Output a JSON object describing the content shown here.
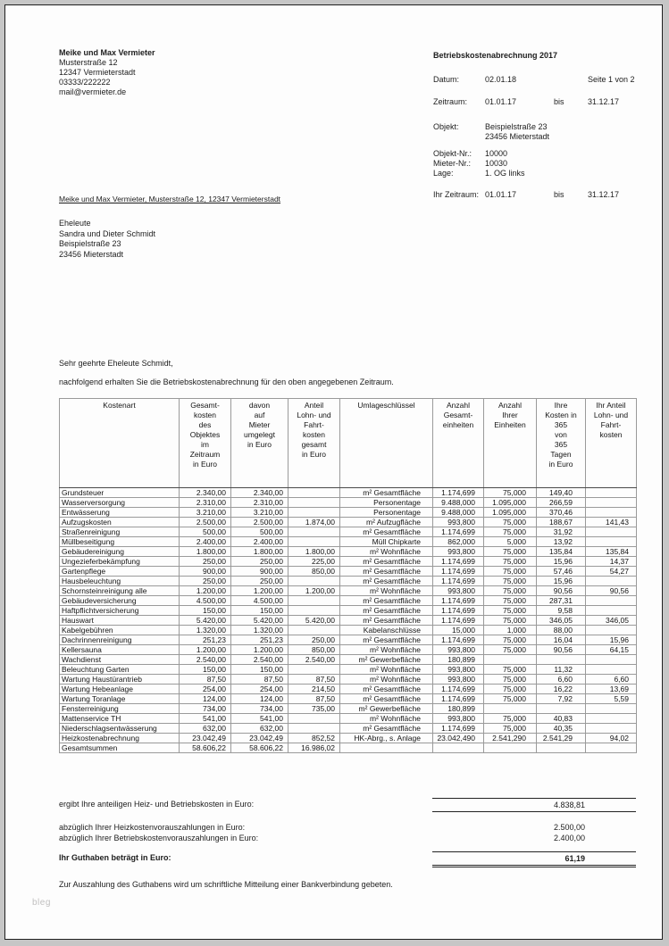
{
  "sender": {
    "name": "Meike und Max Vermieter",
    "address": "Musterstraße 12\n12347 Vermieterstadt\n03333/222222\nmail@vermieter.de"
  },
  "doc_header": {
    "title": "Betriebskostenabrechnung 2017",
    "datum": {
      "label": "Datum:",
      "value": "02.01.18",
      "page": "Seite 1 von 2"
    },
    "zeitraum": {
      "label": "Zeitraum:",
      "from": "01.01.17",
      "bis": "bis",
      "to": "31.12.17"
    },
    "objekt": {
      "label": "Objekt:",
      "value": "Beispielstraße 23\n23456 Mieterstadt"
    },
    "objekt_nr": {
      "label": "Objekt-Nr.:",
      "value": "10000"
    },
    "mieter_nr": {
      "label": "Mieter-Nr.:",
      "value": "10030"
    },
    "lage": {
      "label": "Lage:",
      "value": "1. OG links"
    },
    "ihr_zeitraum": {
      "label": "Ihr Zeitraum:",
      "from": "01.01.17",
      "bis": "bis",
      "to": "31.12.17"
    }
  },
  "sender_line": "Meike und Max Vermieter, Musterstraße 12, 12347 Vermieterstadt",
  "recipient": "Eheleute\nSandra und Dieter Schmidt\nBeispielstraße 23\n23456 Mieterstadt",
  "salutation": "Sehr geehrte Eheleute Schmidt,",
  "intro": "nachfolgend erhalten Sie die Betriebskostenabrechnung für den oben angegebenen Zeitraum.",
  "table": {
    "headers": [
      "Kostenart",
      "Gesamt-\nkosten\ndes\nObjektes\nim\nZeitraum\nin Euro",
      "davon\nauf\nMieter\numgelegt\nin Euro",
      "Anteil\nLohn- und\nFahrt-\nkosten\ngesamt\nin Euro",
      "Umlageschlüssel",
      "Anzahl\nGesamt-\neinheiten",
      "Anzahl\nIhrer\nEinheiten",
      "Ihre\nKosten in\n365\nvon\n365\nTagen\nin Euro",
      "Ihr Anteil\nLohn- und\nFahrt-\nkosten"
    ],
    "rows": [
      [
        "Grundsteuer",
        "2.340,00",
        "2.340,00",
        "",
        "m² Gesamtfläche",
        "1.174,699",
        "75,000",
        "149,40",
        ""
      ],
      [
        "Wasserversorgung",
        "2.310,00",
        "2.310,00",
        "",
        "Personentage",
        "9.488,000",
        "1.095,000",
        "266,59",
        ""
      ],
      [
        "Entwässerung",
        "3.210,00",
        "3.210,00",
        "",
        "Personentage",
        "9.488,000",
        "1.095,000",
        "370,46",
        ""
      ],
      [
        "Aufzugskosten",
        "2.500,00",
        "2.500,00",
        "1.874,00",
        "m² Aufzugfläche",
        "993,800",
        "75,000",
        "188,67",
        "141,43"
      ],
      [
        "Straßenreinigung",
        "500,00",
        "500,00",
        "",
        "m² Gesamtfläche",
        "1.174,699",
        "75,000",
        "31,92",
        ""
      ],
      [
        "Müllbeseitigung",
        "2.400,00",
        "2.400,00",
        "",
        "Müll Chipkarte",
        "862,000",
        "5,000",
        "13,92",
        ""
      ],
      [
        "Gebäudereinigung",
        "1.800,00",
        "1.800,00",
        "1.800,00",
        "m² Wohnfläche",
        "993,800",
        "75,000",
        "135,84",
        "135,84"
      ],
      [
        "Ungezieferbekämpfung",
        "250,00",
        "250,00",
        "225,00",
        "m² Gesamtfläche",
        "1.174,699",
        "75,000",
        "15,96",
        "14,37"
      ],
      [
        "Gartenpflege",
        "900,00",
        "900,00",
        "850,00",
        "m² Gesamtfläche",
        "1.174,699",
        "75,000",
        "57,46",
        "54,27"
      ],
      [
        "Hausbeleuchtung",
        "250,00",
        "250,00",
        "",
        "m² Gesamtfläche",
        "1.174,699",
        "75,000",
        "15,96",
        ""
      ],
      [
        "Schornsteinreinigung alle",
        "1.200,00",
        "1.200,00",
        "1.200,00",
        "m² Wohnfläche",
        "993,800",
        "75,000",
        "90,56",
        "90,56"
      ],
      [
        "Gebäudeversicherung",
        "4.500,00",
        "4.500,00",
        "",
        "m² Gesamtfläche",
        "1.174,699",
        "75,000",
        "287,31",
        ""
      ],
      [
        "Haftpflichtversicherung",
        "150,00",
        "150,00",
        "",
        "m² Gesamtfläche",
        "1.174,699",
        "75,000",
        "9,58",
        ""
      ],
      [
        "Hauswart",
        "5.420,00",
        "5.420,00",
        "5.420,00",
        "m² Gesamtfläche",
        "1.174,699",
        "75,000",
        "346,05",
        "346,05"
      ],
      [
        "Kabelgebühren",
        "1.320,00",
        "1.320,00",
        "",
        "Kabelanschlüsse",
        "15,000",
        "1,000",
        "88,00",
        ""
      ],
      [
        "Dachrinnenreinigung",
        "251,23",
        "251,23",
        "250,00",
        "m² Gesamtfläche",
        "1.174,699",
        "75,000",
        "16,04",
        "15,96"
      ],
      [
        "Kellersauna",
        "1.200,00",
        "1.200,00",
        "850,00",
        "m² Wohnfläche",
        "993,800",
        "75,000",
        "90,56",
        "64,15"
      ],
      [
        "Wachdienst",
        "2.540,00",
        "2.540,00",
        "2.540,00",
        "m² Gewerbefläche",
        "180,899",
        "",
        "",
        ""
      ],
      [
        "Beleuchtung Garten",
        "150,00",
        "150,00",
        "",
        "m² Wohnfläche",
        "993,800",
        "75,000",
        "11,32",
        ""
      ],
      [
        "Wartung Haustürantrieb",
        "87,50",
        "87,50",
        "87,50",
        "m² Wohnfläche",
        "993,800",
        "75,000",
        "6,60",
        "6,60"
      ],
      [
        "Wartung Hebeanlage",
        "254,00",
        "254,00",
        "214,50",
        "m² Gesamtfläche",
        "1.174,699",
        "75,000",
        "16,22",
        "13,69"
      ],
      [
        "Wartung Toranlage",
        "124,00",
        "124,00",
        "87,50",
        "m² Gesamtfläche",
        "1.174,699",
        "75,000",
        "7,92",
        "5,59"
      ],
      [
        "Fensterreinigung",
        "734,00",
        "734,00",
        "735,00",
        "m² Gewerbefläche",
        "180,899",
        "",
        "",
        ""
      ],
      [
        "Mattenservice TH",
        "541,00",
        "541,00",
        "",
        "m² Wohnfläche",
        "993,800",
        "75,000",
        "40,83",
        ""
      ],
      [
        "Niederschlagsentwässerung",
        "632,00",
        "632,00",
        "",
        "m² Gesamtfläche",
        "1.174,699",
        "75,000",
        "40,35",
        ""
      ],
      [
        "Heizkostenabrechnung",
        "23.042,49",
        "23.042,49",
        "852,52",
        "HK-Abrg., s. Anlage",
        "23.042,490",
        "2.541,290",
        "2.541,29",
        "94,02"
      ],
      [
        "Gesamtsummen",
        "58.606,22",
        "58.606,22",
        "16.986,02",
        "",
        "",
        "",
        "",
        ""
      ]
    ]
  },
  "summary": {
    "result": {
      "label": "ergibt Ihre anteiligen Heiz- und Betriebskosten in Euro:",
      "value": "4.838,81"
    },
    "deduction1": {
      "label": "abzüglich Ihrer Heizkostenvorauszahlungen in Euro:",
      "value": "2.500,00"
    },
    "deduction2": {
      "label": "abzüglich Ihrer Betriebskostenvorauszahlungen in Euro:",
      "value": "2.400,00"
    },
    "credit": {
      "label": "Ihr Guthaben beträgt in Euro:",
      "value": "61,19"
    }
  },
  "closing": "Zur Auszahlung des Guthabens wird um schriftliche Mitteilung einer Bankverbindung gebeten.",
  "watermark": "bleg"
}
